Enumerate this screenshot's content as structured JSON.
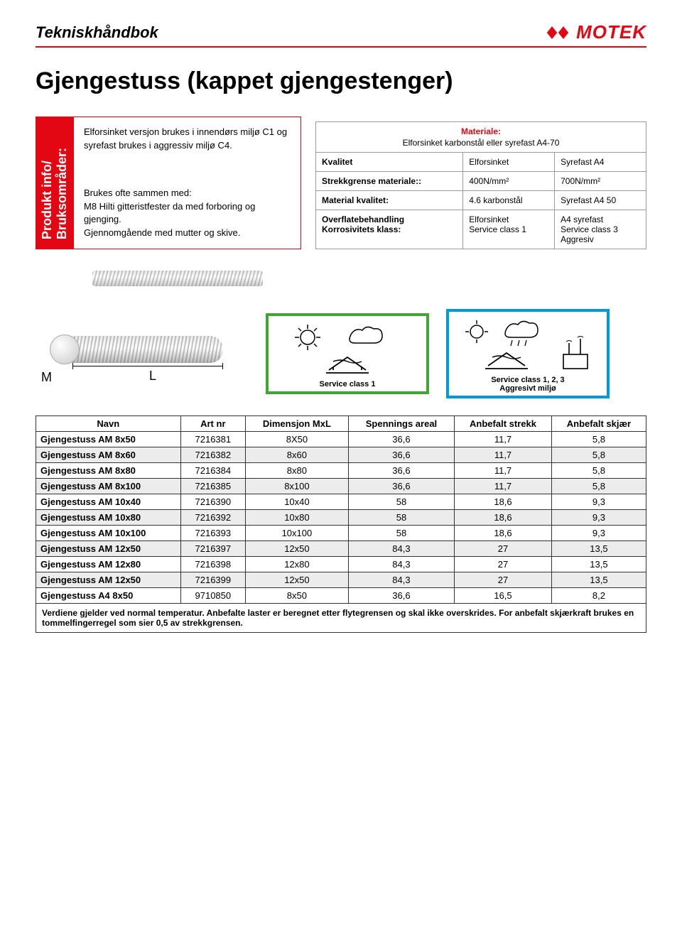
{
  "header": {
    "title": "Tekniskhåndbok",
    "brand": "MOTEK",
    "accent": "#e30613"
  },
  "main_title": "Gjengestuss (kappet gjengestenger)",
  "sidebar_label": "Produkt info/\nBruksområder:",
  "info_blocks": [
    "Elforsinket versjon brukes i innendørs miljø C1 og syrefast brukes i aggressiv miljø C4.",
    "Brukes ofte sammen med:\nM8 Hilti gitteristfester da med forboring og gjenging.\nGjennomgående med mutter og skive."
  ],
  "material_box": {
    "label": "Materiale:",
    "subtitle": "Elforsinket karbonstål eller syrefast A4-70",
    "rows": [
      {
        "k": "Kvalitet",
        "a": "Elforsinket",
        "b": "Syrefast A4"
      },
      {
        "k": "Strekkgrense materiale::",
        "a": "400N/mm²",
        "b": "700N/mm²"
      },
      {
        "k": "Material kvalitet:",
        "a": "4.6 karbonstål",
        "b": "Syrefast A4 50"
      },
      {
        "k": "Overflatebehandling\nKorrosivitets klass:",
        "a": "Elforsinket\nService class 1",
        "b": "A4 syrefast\nService class 3\nAggresiv"
      }
    ]
  },
  "diagram": {
    "m": "M",
    "l": "L"
  },
  "env_boxes": [
    {
      "color": "#3fa535",
      "caption": "Service class 1"
    },
    {
      "color": "#0099d8",
      "caption": "Service class 1, 2, 3\nAggresivt miljø"
    }
  ],
  "table": {
    "headers": [
      "Navn",
      "Art nr",
      "Dimensjon MxL",
      "Spennings areal",
      "Anbefalt strekk",
      "Anbefalt skjær"
    ],
    "rows": [
      [
        "Gjengestuss AM 8x50",
        "7216381",
        "8X50",
        "36,6",
        "11,7",
        "5,8"
      ],
      [
        "Gjengestuss AM 8x60",
        "7216382",
        "8x60",
        "36,6",
        "11,7",
        "5,8"
      ],
      [
        "Gjengestuss AM 8x80",
        "7216384",
        "8x80",
        "36,6",
        "11,7",
        "5,8"
      ],
      [
        "Gjengestuss AM 8x100",
        "7216385",
        "8x100",
        "36,6",
        "11,7",
        "5,8"
      ],
      [
        "Gjengestuss AM 10x40",
        "7216390",
        "10x40",
        "58",
        "18,6",
        "9,3"
      ],
      [
        "Gjengestuss AM 10x80",
        "7216392",
        "10x80",
        "58",
        "18,6",
        "9,3"
      ],
      [
        "Gjengestuss AM 10x100",
        "7216393",
        "10x100",
        "58",
        "18,6",
        "9,3"
      ],
      [
        "Gjengestuss AM 12x50",
        "7216397",
        "12x50",
        "84,3",
        "27",
        "13,5"
      ],
      [
        "Gjengestuss AM 12x80",
        "7216398",
        "12x80",
        "84,3",
        "27",
        "13,5"
      ],
      [
        "Gjengestuss AM 12x50",
        "7216399",
        "12x50",
        "84,3",
        "27",
        "13,5"
      ],
      [
        "Gjengestuss A4 8x50",
        "9710850",
        "8x50",
        "36,6",
        "16,5",
        "8,2"
      ]
    ],
    "footer": "Verdiene gjelder ved normal temperatur. Anbefalte laster er beregnet etter flytegrensen og skal ikke overskrides. For anbefalt skjærkraft brukes en tommelfingerregel som sier 0,5 av strekkgrensen."
  }
}
